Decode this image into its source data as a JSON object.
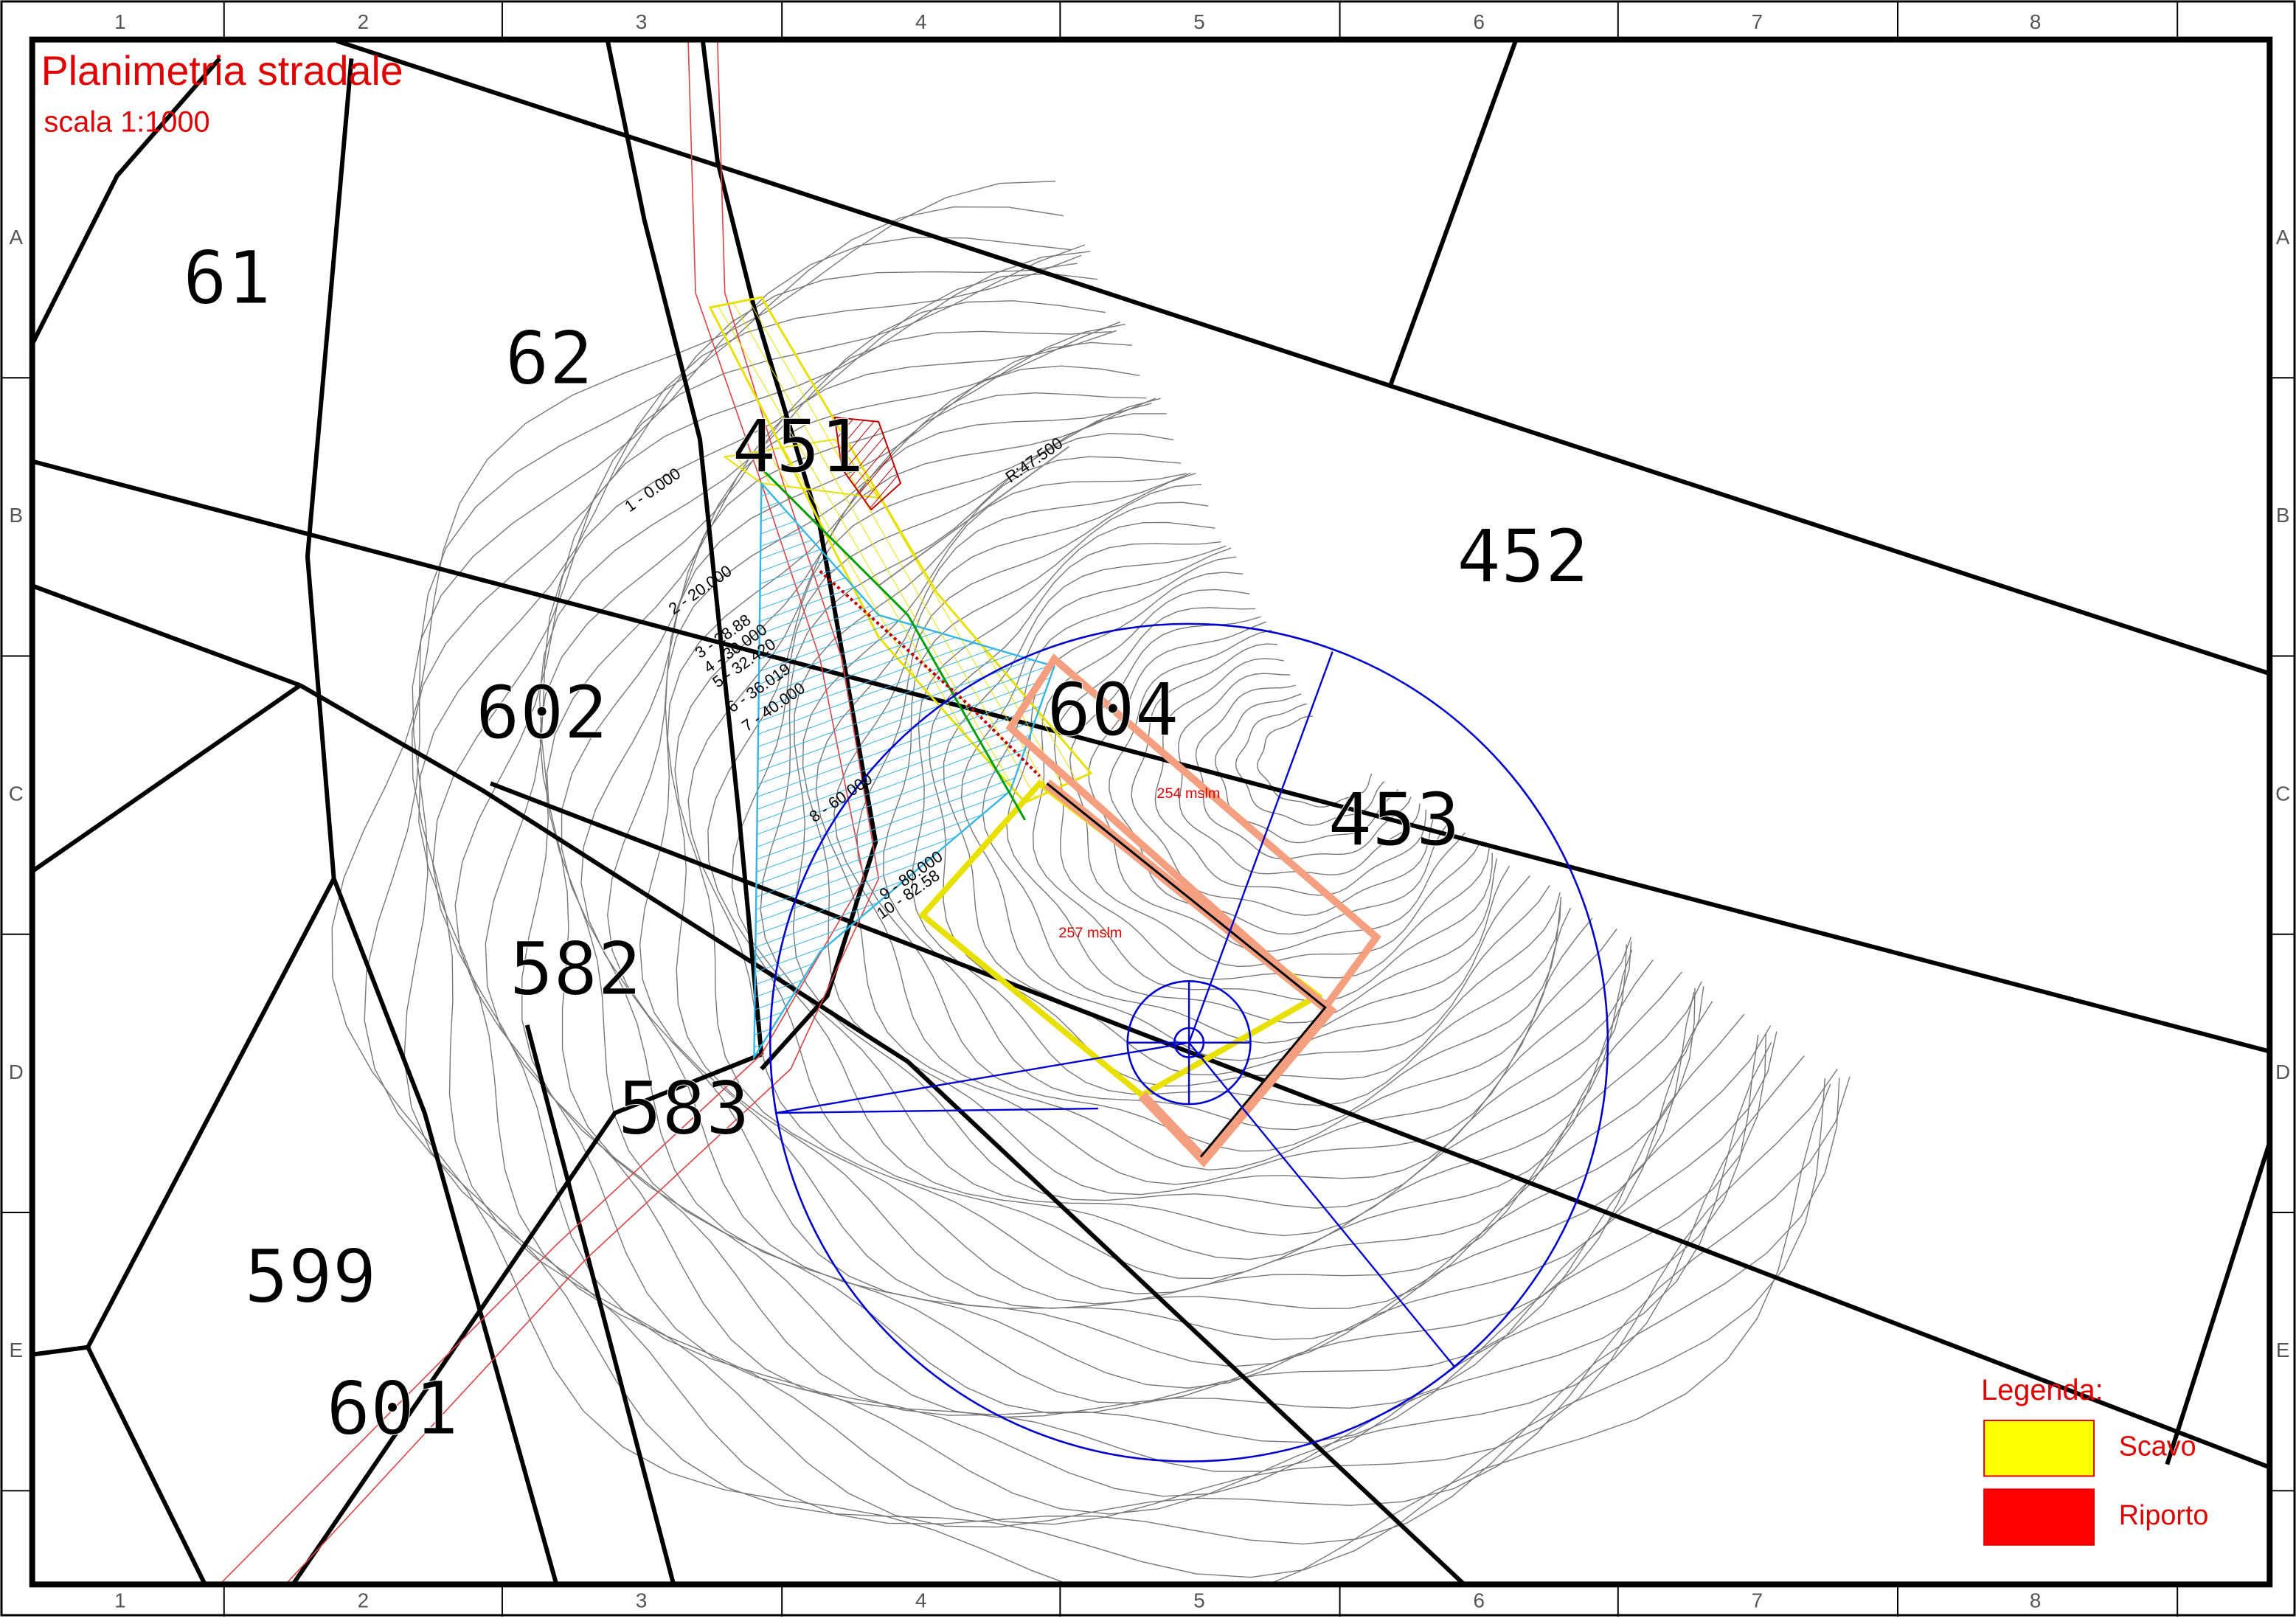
{
  "header": {
    "title": "Planimetria stradale",
    "scale": "scala 1:1000"
  },
  "frame": {
    "columns": [
      "1",
      "2",
      "3",
      "4",
      "5",
      "6",
      "7",
      "8"
    ],
    "rows": [
      "A",
      "B",
      "C",
      "D",
      "E"
    ]
  },
  "parcels": [
    "61",
    "62",
    "602",
    "582",
    "583",
    "599",
    "601",
    "604",
    "453",
    "452",
    "451"
  ],
  "stations": [
    "1 - 0.000",
    "2 - 20.000",
    "3 - 28.88",
    "4 - 30.000",
    "5 - 32.420",
    "6 - 36.019",
    "7 - 40.000",
    "8 - 60.000",
    "9 - 80.000",
    "10 - 82.58"
  ],
  "curve_radius": "R:47.500",
  "elevations": [
    "254 mslm",
    "257 mslm"
  ],
  "legend": {
    "title": "Legenda:",
    "items": [
      {
        "label": "Scavo",
        "color": "#ffff00"
      },
      {
        "label": "Riporto",
        "color": "#ff0000"
      }
    ]
  }
}
